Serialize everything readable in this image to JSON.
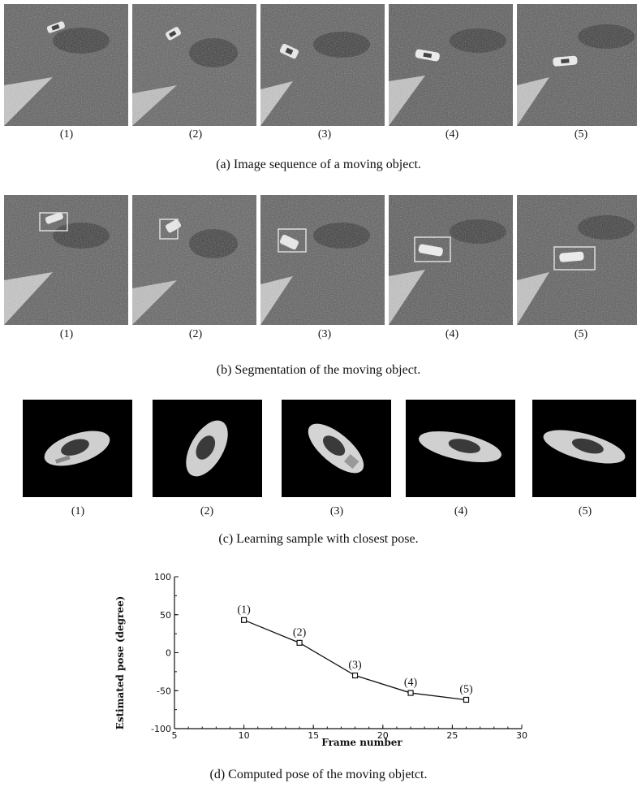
{
  "captions": {
    "a": "(a) Image sequence of a moving object.",
    "b": "(b) Segmentation of the moving object.",
    "c": "(c) Learning sample with closest pose.",
    "d": "(d) Computed pose of the moving objetct."
  },
  "frame_labels": [
    "(1)",
    "(2)",
    "(3)",
    "(4)",
    "(5)"
  ],
  "chart_data": {
    "type": "line",
    "x": [
      10,
      14,
      18,
      22,
      26
    ],
    "y": [
      43,
      13,
      -30,
      -53,
      -62
    ],
    "point_labels": [
      "(1)",
      "(2)",
      "(3)",
      "(4)",
      "(5)"
    ],
    "xlabel": "Frame number",
    "ylabel": "Estimated pose (degree)",
    "xlim": [
      5,
      30
    ],
    "ylim": [
      -100,
      100
    ],
    "xticks": [
      5,
      10,
      15,
      20,
      25,
      30
    ],
    "yticks": [
      100,
      50,
      0,
      -50,
      -100
    ],
    "grid": false,
    "marker": "square"
  }
}
